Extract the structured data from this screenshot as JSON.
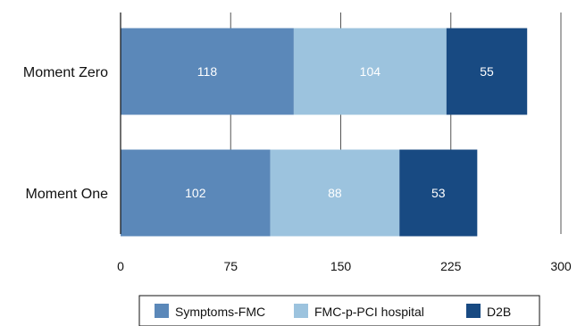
{
  "chart_data": {
    "type": "bar",
    "orientation": "horizontal",
    "stacked": true,
    "categories": [
      "Moment Zero",
      "Moment One"
    ],
    "series": [
      {
        "name": "Symptoms-FMC",
        "values": [
          118,
          102
        ],
        "color": "#5b88b9"
      },
      {
        "name": "FMC-p-PCI hospital",
        "values": [
          104,
          88
        ],
        "color": "#9cc3de"
      },
      {
        "name": "D2B",
        "values": [
          55,
          53
        ],
        "color": "#184a82"
      }
    ],
    "xticks": [
      "0",
      "75",
      "150",
      "225",
      "300"
    ],
    "xlim": [
      0,
      300
    ],
    "title": "",
    "xlabel": "",
    "ylabel": "",
    "grid": "vertical",
    "legend_position": "bottom",
    "data_labels": true
  }
}
